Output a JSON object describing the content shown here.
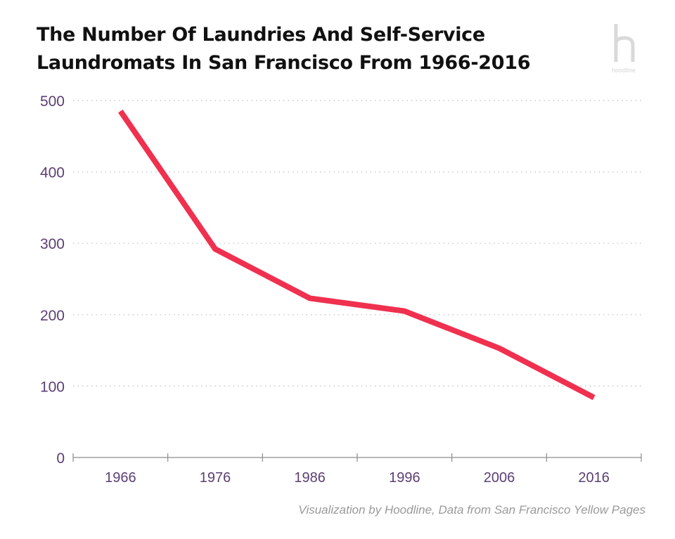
{
  "chart_data": {
    "type": "line",
    "title": "The Number Of Laundries And Self-Service Laundromats In San Francisco From 1966-2016",
    "title_lines": [
      "The Number Of Laundries And Self-Service",
      "Laundromats In San Francisco From 1966-2016"
    ],
    "categories": [
      "1966",
      "1976",
      "1986",
      "1996",
      "2006",
      "2016"
    ],
    "series": [
      {
        "values": [
          485,
          292,
          223,
          205,
          153,
          84
        ]
      }
    ],
    "xlabel": "",
    "ylabel": "",
    "ylim": [
      0,
      500
    ],
    "yticks": [
      "0",
      "100",
      "200",
      "300",
      "400",
      "500"
    ],
    "grid": "horizontal dotted",
    "line_color": "#f0304f",
    "text_color": "#5b3f73"
  },
  "brand": {
    "logo_letter": "h",
    "logo_text": "hoodline"
  },
  "footer": {
    "credit": "Visualization by Hoodline, Data from San Francisco Yellow Pages"
  }
}
